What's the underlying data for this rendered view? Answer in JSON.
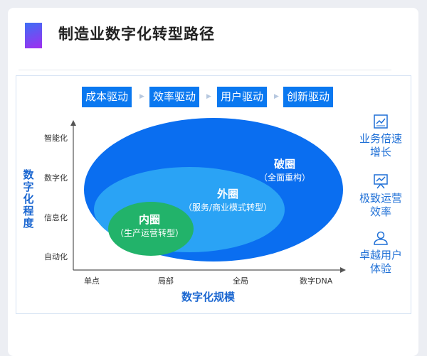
{
  "title": "制造业数字化转型路径",
  "colors": {
    "accent": "#0a78f0",
    "outer": "#0a6ef0",
    "middle": "#2aa3f5",
    "inner": "#22b36a"
  },
  "stages": [
    "成本驱动",
    "效率驱动",
    "用户驱动",
    "创新驱动"
  ],
  "y_axis": {
    "label": "数字化程度",
    "ticks": [
      "智能化",
      "数字化",
      "信息化",
      "自动化"
    ]
  },
  "x_axis": {
    "label": "数字化规模",
    "ticks": [
      "单点",
      "局部",
      "全局",
      "数字DNA"
    ]
  },
  "circles": {
    "outer": {
      "name": "破圈",
      "desc": "（全面重构）"
    },
    "middle": {
      "name": "外圈",
      "desc": "（服务/商业模式转型）"
    },
    "inner": {
      "name": "内圈",
      "desc": "（生产运营转型）"
    }
  },
  "benefits": [
    {
      "icon": "growth-chart-icon",
      "line1": "业务倍速",
      "line2": "增长"
    },
    {
      "icon": "presentation-icon",
      "line1": "极致运营",
      "line2": "效率"
    },
    {
      "icon": "user-icon",
      "line1": "卓越用户",
      "line2": "体验"
    }
  ]
}
